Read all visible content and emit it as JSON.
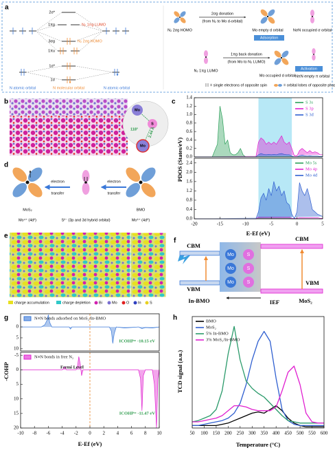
{
  "chart_data": [
    {
      "type": "line",
      "ylabel": "PDOS (States/eV)",
      "xlim": [
        -20,
        5
      ],
      "ylim": [
        0,
        1.4
      ],
      "yticks": [
        {
          "value": 0,
          "label": "0.0"
        },
        0.2,
        0.4,
        0.6,
        0.8,
        {
          "value": 1,
          "label": "1.0"
        },
        1.2,
        1.4
      ],
      "highlight": [
        -7.5,
        -1
      ],
      "area": true,
      "legend": "upper right",
      "x": [
        -20,
        -19.5,
        -19,
        -18.5,
        -18,
        -17.5,
        -17,
        -16.5,
        -16,
        -15.5,
        -15,
        -14.5,
        -14,
        -13.5,
        -13,
        -12.5,
        -12,
        -11.5,
        -11,
        -10.5,
        -10,
        -9.5,
        -9,
        -8.5,
        -8,
        -7.5,
        -7,
        -6.5,
        -6,
        -5.5,
        -5,
        -4.5,
        -4,
        -3.5,
        -3,
        -2.5,
        -2,
        -1.5,
        -1,
        -0.5,
        0,
        0.5,
        1,
        1.5,
        2,
        2.5,
        3,
        3.5,
        4,
        4.5,
        5
      ],
      "series": [
        {
          "name": "S 3s",
          "color": "#2ca05a",
          "values": [
            0,
            0,
            0,
            0,
            0,
            0,
            0,
            0,
            0.15,
            0.3,
            1.2,
            0.9,
            0.3,
            0.4,
            0.1,
            0.05,
            0.05,
            0.1,
            0.2,
            0.05,
            0,
            0,
            0,
            0,
            0,
            0,
            0,
            0,
            0,
            0,
            0,
            0,
            0,
            0,
            0,
            0,
            0,
            0,
            0,
            0,
            0,
            0,
            0,
            0,
            0,
            0,
            0,
            0,
            0,
            0,
            0
          ]
        },
        {
          "name": "S 3p",
          "color": "#e020d0",
          "values": [
            0,
            0,
            0,
            0,
            0,
            0,
            0,
            0,
            0,
            0,
            0,
            0,
            0,
            0,
            0,
            0,
            0,
            0,
            0,
            0,
            0,
            0,
            0,
            0,
            0,
            0.35,
            0.45,
            0.4,
            0.3,
            0.35,
            0.3,
            0.35,
            0.3,
            0.4,
            0.5,
            0.35,
            0.3,
            0.35,
            0.2,
            0.02,
            0.02,
            0.15,
            0.2,
            0.15,
            0.1,
            0.15,
            0.1,
            0.12,
            0.1,
            0.05,
            0.05
          ]
        },
        {
          "name": "S 3d",
          "color": "#3060d0",
          "values": [
            0,
            0,
            0,
            0,
            0,
            0,
            0,
            0,
            0,
            0,
            0,
            0,
            0,
            0,
            0,
            0,
            0,
            0,
            0,
            0,
            0,
            0,
            0,
            0,
            0,
            0.05,
            0.08,
            0.06,
            0.05,
            0.06,
            0.05,
            0.06,
            0.05,
            0.07,
            0.08,
            0.06,
            0.05,
            0.05,
            0.02,
            0,
            0,
            0.03,
            0.04,
            0.03,
            0.02,
            0.03,
            0.02,
            0.02,
            0.02,
            0.01,
            0.01
          ]
        }
      ]
    },
    {
      "type": "line",
      "xlabel": "E-Ef (eV)",
      "xlim": [
        -20,
        5
      ],
      "ylim": [
        0,
        2.6
      ],
      "xticks": [
        -20,
        -15,
        -10,
        -5,
        0,
        5
      ],
      "yticks": [
        {
          "value": 0,
          "label": "0.0"
        },
        0.4,
        0.8,
        1.2,
        1.6,
        {
          "value": 2,
          "label": "2.0"
        },
        2.4
      ],
      "highlight": [
        -7.5,
        -1
      ],
      "area": true,
      "legend": "upper right",
      "x": [
        -20,
        -19.5,
        -19,
        -18.5,
        -18,
        -17.5,
        -17,
        -16.5,
        -16,
        -15.5,
        -15,
        -14.5,
        -14,
        -13.5,
        -13,
        -12.5,
        -12,
        -11.5,
        -11,
        -10.5,
        -10,
        -9.5,
        -9,
        -8.5,
        -8,
        -7.5,
        -7,
        -6.5,
        -6,
        -5.5,
        -5,
        -4.5,
        -4,
        -3.5,
        -3,
        -2.5,
        -2,
        -1.5,
        -1,
        -0.5,
        0,
        0.5,
        1,
        1.5,
        2,
        2.5,
        3,
        3.5,
        4,
        4.5,
        5
      ],
      "series": [
        {
          "name": "Mo 5s",
          "color": "#2ca05a",
          "values": [
            0,
            0,
            0,
            0,
            0,
            0,
            0,
            0,
            0,
            0,
            0,
            0,
            0,
            0,
            0,
            0,
            0,
            0,
            0,
            0,
            0,
            0,
            0,
            0,
            0,
            0.03,
            0.03,
            0.03,
            0.03,
            0.03,
            0.03,
            0.03,
            0.03,
            0.03,
            0.03,
            0.03,
            0.03,
            0.03,
            0,
            0,
            0,
            0,
            0,
            0,
            0,
            0,
            0,
            0,
            0,
            0,
            0
          ]
        },
        {
          "name": "Mo 4p",
          "color": "#e020d0",
          "values": [
            0,
            0,
            0,
            0,
            0,
            0,
            0,
            0,
            0,
            0,
            0,
            0,
            0,
            0,
            0,
            0,
            0,
            0,
            0,
            0,
            0,
            0,
            0,
            0,
            0,
            0.08,
            0.08,
            0.08,
            0.08,
            0.08,
            0.08,
            0.08,
            0.08,
            0.08,
            0.08,
            0.08,
            0.08,
            0.08,
            0.02,
            0.02,
            0.02,
            0.05,
            0.05,
            0.05,
            0.05,
            0.05,
            0.05,
            0.05,
            0.05,
            0.02,
            0.02
          ]
        },
        {
          "name": "Mo 4d",
          "color": "#3060d0",
          "values": [
            0,
            0,
            0,
            0,
            0,
            0,
            0,
            0,
            0,
            0,
            0,
            0,
            0,
            0,
            0,
            0,
            0,
            0,
            0,
            0,
            0,
            0,
            0,
            0,
            0,
            0.3,
            0.9,
            1.1,
            0.8,
            1.3,
            1.0,
            1.6,
            1.2,
            1.4,
            1.0,
            1.2,
            0.7,
            0.6,
            0.2,
            0,
            0.3,
            1.55,
            1.2,
            1.0,
            1.3,
            0.9,
            0.4,
            0.3,
            0.2,
            0.15,
            0.1
          ]
        }
      ]
    },
    {
      "type": "line",
      "ylabel": "-COHP",
      "xlim": [
        -10,
        10
      ],
      "ylim": [
        -6,
        11
      ],
      "y_inverted": true,
      "yticks": [
        0,
        5,
        10
      ],
      "vline": 0,
      "area": true,
      "legend": "upper left",
      "annotations": [
        "ICOHP= -10.15 eV"
      ],
      "x": [
        -10,
        -7,
        -6.5,
        -6.2,
        -6,
        -5.8,
        -5.5,
        -4,
        -3,
        -2.8,
        -2.6,
        -1,
        0,
        1,
        2,
        2.8,
        3.1,
        3.3,
        3.5,
        3.8,
        5,
        7,
        7.5,
        8,
        9,
        10
      ],
      "series": [
        {
          "name": "N≡N bonds adsorbed on MoS₂/In-BMO",
          "color": "#3a78d8",
          "values": [
            0,
            0,
            -1,
            -3,
            -5.5,
            -2,
            0,
            0,
            0,
            1,
            0,
            0,
            0,
            0,
            0,
            0,
            2,
            7.5,
            3,
            0,
            0.5,
            0,
            0.8,
            0.3,
            0.5,
            0
          ]
        }
      ]
    },
    {
      "type": "line",
      "xlabel": "E-Ef (eV)",
      "xlim": [
        -10,
        10
      ],
      "ylim": [
        -6,
        20
      ],
      "y_inverted": true,
      "xticks": [
        -10,
        -8,
        -6,
        -4,
        -2,
        0,
        2,
        4,
        6,
        8,
        10
      ],
      "yticks": [
        -5,
        0,
        5,
        10,
        15,
        20
      ],
      "vline": 0,
      "area": true,
      "legend": "upper left",
      "annotations": [
        "ICOHP= -11.47 eV",
        "Fermi Level"
      ],
      "x": [
        -10,
        -4,
        -3.6,
        -3.4,
        -3,
        -2,
        -1.8,
        -1.6,
        -1.4,
        -1.2,
        -1,
        0,
        5,
        7,
        7.3,
        7.5,
        7.7,
        8,
        9,
        9.3,
        9.6,
        9.8,
        10
      ],
      "series": [
        {
          "name": "N≡N bonds in free N₂",
          "color": "#e020d0",
          "values": [
            0,
            0,
            -1,
            0,
            0,
            0,
            -1,
            -4.5,
            -2,
            2,
            0,
            0,
            0,
            0,
            3,
            14,
            2,
            0,
            0,
            5,
            20,
            3,
            0
          ]
        }
      ]
    },
    {
      "type": "line",
      "xlabel": "Temperature (°C)",
      "ylabel": "TCD signal (a.u.)",
      "xlim": [
        50,
        600
      ],
      "ylim": [
        0,
        0.9
      ],
      "xticks": [
        50,
        100,
        150,
        200,
        250,
        300,
        350,
        400,
        450,
        500,
        550,
        600
      ],
      "legend": "upper left",
      "x": [
        50,
        75,
        100,
        125,
        150,
        175,
        200,
        225,
        250,
        275,
        300,
        325,
        350,
        375,
        400,
        425,
        450,
        475,
        500,
        525,
        550,
        575,
        600
      ],
      "series": [
        {
          "name": "BMO",
          "color": "#000000",
          "values": [
            0.02,
            0.02,
            0.02,
            0.02,
            0.02,
            0.03,
            0.04,
            0.06,
            0.08,
            0.1,
            0.12,
            0.13,
            0.12,
            0.15,
            0.18,
            0.14,
            0.08,
            0.04,
            0.02,
            0.01,
            0.01,
            0.01,
            0.01
          ]
        },
        {
          "name": "MoS₂",
          "color": "#2f5fd0",
          "values": [
            0.02,
            0.02,
            0.03,
            0.04,
            0.05,
            0.06,
            0.08,
            0.12,
            0.2,
            0.35,
            0.55,
            0.7,
            0.78,
            0.7,
            0.4,
            0.15,
            0.06,
            0.03,
            0.02,
            0.02,
            0.02,
            0.02,
            0.02
          ]
        },
        {
          "name": "5% In-BMO",
          "color": "#2a9a6a",
          "values": [
            0.05,
            0.06,
            0.08,
            0.1,
            0.15,
            0.3,
            0.6,
            0.82,
            0.55,
            0.38,
            0.32,
            0.28,
            0.25,
            0.2,
            0.15,
            0.1,
            0.06,
            0.05,
            0.04,
            0.04,
            0.04,
            0.04,
            0.04
          ]
        },
        {
          "name": "3% MoS₂/In-BMO",
          "color": "#e020d0",
          "values": [
            0.05,
            0.05,
            0.06,
            0.07,
            0.08,
            0.1,
            0.14,
            0.18,
            0.18,
            0.17,
            0.15,
            0.14,
            0.14,
            0.14,
            0.17,
            0.3,
            0.45,
            0.5,
            0.35,
            0.12,
            0.05,
            0.04,
            0.04
          ]
        }
      ]
    }
  ],
  "figure": {
    "labels": [
      "a",
      "b",
      "c",
      "d",
      "e",
      "f",
      "g",
      "h"
    ],
    "a": {
      "levels": [
        "2σ*",
        "1πg",
        "3σg",
        "1πu",
        "1σ*",
        "1σ"
      ],
      "frontier": [
        "N₂ 1πg LUMO",
        "N₂ 2σg HOMO"
      ],
      "axis": [
        "N atomic orbital",
        "N molecular orbital",
        "N atomic orbital"
      ],
      "donation": [
        "N₂ 2σg HOMO",
        "2σg donation",
        "(from N₂ to Mo d-orbital)",
        "Mo empty d orbital",
        "Adsorption",
        "NσN occupied σ orbital"
      ],
      "back_donation": [
        "N₂ 1πg LUMO",
        "1πg back donation",
        "(from Mo to N₂ LUMO)",
        "Mo occupied d orbital",
        "Activation",
        "NπN empty π orbital"
      ],
      "key": [
        "= single electrons of opposite spin",
        "= orbital lobes of opposite phase"
      ]
    },
    "b": [
      "Mo",
      "S",
      "118°",
      "2.44 Å",
      "Mo"
    ],
    "d": {
      "left": [
        "MoS₂",
        "Mo⁴⁺ (4d²)"
      ],
      "middle": "S²⁻ (3p and 3d hybrid orbital)",
      "right": [
        "BMO",
        "Mo⁶⁺ (4d⁰)"
      ],
      "arrows": [
        [
          "electron",
          "transfer"
        ],
        [
          "electron",
          "transfer"
        ]
      ]
    },
    "e": [
      "charge accumulation",
      "charge depletion",
      "Bi",
      "Mo",
      "O",
      "In",
      "S"
    ],
    "f": {
      "left": [
        "CBM",
        "VBM",
        "In-BMO"
      ],
      "right": [
        "CBM",
        "VBM",
        "MoS₂"
      ],
      "field": "IEF",
      "ions": [
        "Mo",
        "Mo",
        "Mo",
        "S",
        "S",
        "S"
      ]
    }
  }
}
